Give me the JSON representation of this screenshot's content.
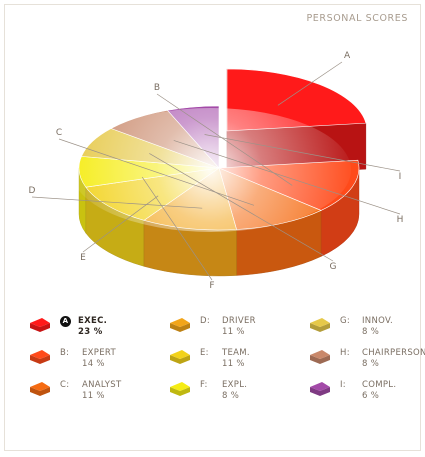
{
  "header": {
    "title": "PERSONAL SCORES"
  },
  "chart_data": {
    "type": "pie",
    "subtype": "3d-exploded",
    "exploded": "A",
    "slices": [
      {
        "letter": "A",
        "name": "EXEC.",
        "value": 23,
        "label": "23 %",
        "color": "#ff1a1a"
      },
      {
        "letter": "B",
        "name": "EXPERT",
        "value": 14,
        "label": "14 %",
        "color": "#ff4a1a"
      },
      {
        "letter": "C",
        "name": "ANALYST",
        "value": 11,
        "label": "11 %",
        "color": "#f56b12"
      },
      {
        "letter": "D",
        "name": "DRIVER",
        "value": 11,
        "label": "11 %",
        "color": "#f2a51a"
      },
      {
        "letter": "E",
        "name": "TEAM.",
        "value": 11,
        "label": "11 %",
        "color": "#f2d21a"
      },
      {
        "letter": "F",
        "name": "EXPL.",
        "value": 8,
        "label": "8 %",
        "color": "#f5ec14"
      },
      {
        "letter": "G",
        "name": "INNOV.",
        "value": 8,
        "label": "8 %",
        "color": "#e6c94a"
      },
      {
        "letter": "H",
        "name": "CHAIRPERSON",
        "value": 8,
        "label": "8 %",
        "color": "#c9886a"
      },
      {
        "letter": "I",
        "name": "COMPL.",
        "value": 6,
        "label": "6 %",
        "color": "#a34aa8"
      }
    ]
  },
  "legend": {
    "active_letter": "A"
  }
}
